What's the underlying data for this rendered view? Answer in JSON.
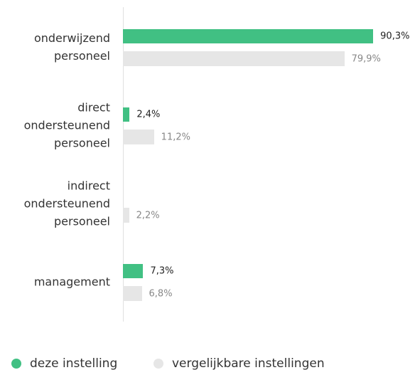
{
  "chart_data": {
    "type": "hbar",
    "categories": [
      "onderwijzend personeel",
      "direct ondersteunend personeel",
      "indirect ondersteunend personeel",
      "management"
    ],
    "series": [
      {
        "name": "deze instelling",
        "color": "#41c083",
        "values": [
          90.3,
          2.4,
          null,
          7.3
        ],
        "value_labels": [
          "90,3%",
          "2,4%",
          null,
          "7,3%"
        ]
      },
      {
        "name": "vergelijkbare instellingen",
        "color": "#e6e6e6",
        "values": [
          79.9,
          11.2,
          2.2,
          6.8
        ],
        "value_labels": [
          "79,9%",
          "11,2%",
          "2,2%",
          "6,8%"
        ]
      }
    ],
    "xlim": [
      0,
      100
    ]
  }
}
